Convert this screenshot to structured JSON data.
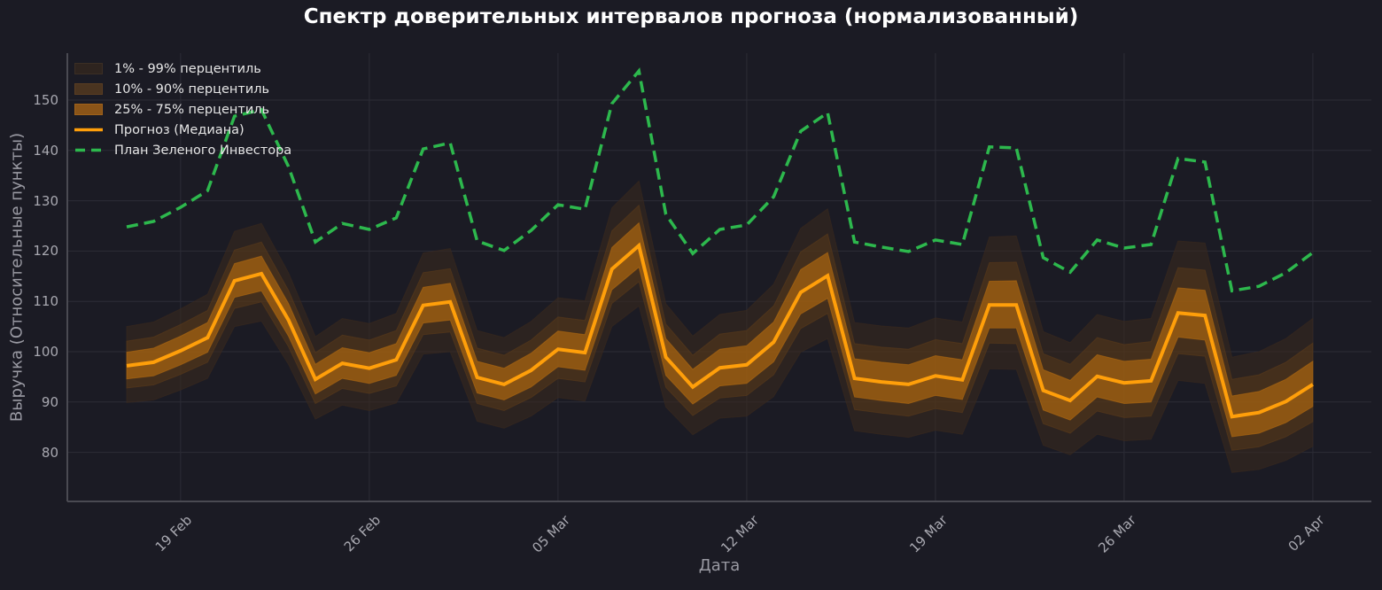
{
  "chart_data": {
    "type": "line",
    "title": "Спектр доверительных интервалов прогноза (нормализованный)",
    "xlabel": "Дата",
    "ylabel": "Выручка (Относительные пункты)",
    "ylim": [
      70,
      159.5
    ],
    "yticks": [
      80,
      90,
      100,
      110,
      120,
      130,
      140,
      150
    ],
    "xtick_labels": [
      {
        "index": 2,
        "label": "19 Feb"
      },
      {
        "index": 9,
        "label": "26 Feb"
      },
      {
        "index": 16,
        "label": "05 Mar"
      },
      {
        "index": 23,
        "label": "12 Mar"
      },
      {
        "index": 30,
        "label": "19 Mar"
      },
      {
        "index": 37,
        "label": "26 Mar"
      },
      {
        "index": 44,
        "label": "02 Apr"
      }
    ],
    "grid": true,
    "legend_position": "upper left",
    "x": [
      "17 Feb",
      "18 Feb",
      "19 Feb",
      "20 Feb",
      "21 Feb",
      "22 Feb",
      "23 Feb",
      "24 Feb",
      "25 Feb",
      "26 Feb",
      "27 Feb",
      "28 Feb",
      "01 Mar",
      "02 Mar",
      "03 Mar",
      "04 Mar",
      "05 Mar",
      "06 Mar",
      "07 Mar",
      "08 Mar",
      "09 Mar",
      "10 Mar",
      "11 Mar",
      "12 Mar",
      "13 Mar",
      "14 Mar",
      "15 Mar",
      "16 Mar",
      "17 Mar",
      "18 Mar",
      "19 Mar",
      "20 Mar",
      "21 Mar",
      "22 Mar",
      "23 Mar",
      "24 Mar",
      "25 Mar",
      "26 Mar",
      "27 Mar",
      "28 Mar",
      "29 Mar",
      "30 Mar",
      "31 Mar",
      "01 Apr",
      "02 Apr"
    ],
    "series": [
      {
        "name": "Прогноз (Медиана)",
        "kind": "line",
        "color": "#ff9f0a",
        "values": [
          97.2,
          97.9,
          100.2,
          102.8,
          114.1,
          115.5,
          106.3,
          94.5,
          97.7,
          96.7,
          98.4,
          109.2,
          109.9,
          94.9,
          93.5,
          96.3,
          100.5,
          99.8,
          116.4,
          121.1,
          98.9,
          93.0,
          96.8,
          97.4,
          101.9,
          111.8,
          115.1,
          94.7,
          94.0,
          93.5,
          95.2,
          94.4,
          109.3,
          109.3,
          92.3,
          90.3,
          95.1,
          93.8,
          94.2,
          107.7,
          107.2,
          87.1,
          87.9,
          90.1,
          93.5
        ]
      },
      {
        "name": "План Зеленого Инвестора",
        "kind": "dashed-line",
        "color": "#2db84d",
        "values": [
          124.8,
          125.9,
          128.7,
          132.0,
          146.8,
          148.1,
          136.8,
          121.8,
          125.5,
          124.3,
          126.6,
          140.3,
          141.5,
          122.0,
          120.1,
          124.1,
          129.2,
          128.3,
          149.3,
          155.8,
          127.3,
          119.5,
          124.3,
          125.2,
          130.8,
          143.8,
          147.5,
          121.8,
          120.8,
          119.9,
          122.2,
          121.3,
          140.7,
          140.5,
          118.7,
          115.8,
          122.2,
          120.6,
          121.3,
          138.4,
          137.7,
          112.1,
          113.0,
          115.7,
          119.7
        ]
      }
    ],
    "bands": [
      {
        "name": "1% - 99% перцентиль",
        "color": "#3a2a1e",
        "opacity": 0.55,
        "lower": [
          89.9,
          90.4,
          92.4,
          94.7,
          105.0,
          106.1,
          97.5,
          86.6,
          89.4,
          88.3,
          89.8,
          99.5,
          100.0,
          86.2,
          84.8,
          87.2,
          90.9,
          90.2,
          105.0,
          109.1,
          89.0,
          83.5,
          86.8,
          87.2,
          91.1,
          99.9,
          102.6,
          84.3,
          83.6,
          83.0,
          84.4,
          83.6,
          96.6,
          96.5,
          81.4,
          79.5,
          83.6,
          82.3,
          82.6,
          94.3,
          93.7,
          76.0,
          76.6,
          78.4,
          81.2
        ],
        "upper": [
          105.0,
          105.9,
          108.5,
          111.4,
          123.9,
          125.5,
          115.7,
          103.0,
          106.6,
          105.6,
          107.6,
          119.6,
          120.5,
          104.2,
          102.8,
          106.0,
          110.7,
          110.1,
          128.6,
          133.9,
          109.5,
          103.1,
          107.4,
          108.2,
          113.4,
          124.5,
          128.4,
          105.8,
          105.1,
          104.7,
          106.7,
          105.9,
          122.8,
          123.0,
          104.0,
          101.8,
          107.4,
          106.0,
          106.6,
          122.0,
          121.6,
          98.9,
          100.0,
          102.6,
          106.6
        ]
      },
      {
        "name": "10% - 90% перцентиль",
        "color": "#5a3a1a",
        "opacity": 0.55,
        "lower": [
          92.8,
          93.4,
          95.5,
          97.9,
          108.6,
          109.9,
          101.0,
          89.7,
          92.7,
          91.7,
          93.2,
          103.4,
          103.9,
          89.7,
          88.3,
          90.9,
          94.7,
          94.0,
          109.6,
          113.9,
          92.9,
          87.3,
          90.8,
          91.3,
          95.4,
          104.6,
          107.6,
          88.5,
          87.8,
          87.2,
          88.7,
          87.9,
          101.7,
          101.6,
          85.7,
          83.8,
          88.2,
          86.9,
          87.2,
          99.6,
          99.1,
          80.4,
          81.1,
          83.1,
          86.1
        ],
        "upper": [
          102.1,
          102.9,
          105.4,
          108.2,
          120.2,
          121.8,
          112.2,
          99.8,
          103.3,
          102.3,
          104.2,
          115.7,
          116.5,
          100.7,
          99.3,
          102.3,
          106.9,
          106.2,
          124.0,
          129.1,
          105.5,
          99.3,
          103.5,
          104.2,
          109.1,
          119.8,
          123.4,
          101.6,
          100.9,
          100.5,
          102.4,
          101.6,
          117.7,
          117.8,
          99.6,
          97.5,
          102.8,
          101.4,
          102.0,
          116.7,
          116.2,
          94.5,
          95.4,
          97.9,
          101.7
        ]
      },
      {
        "name": "25% - 75% перцентиль",
        "color": "#b36a10",
        "opacity": 0.65,
        "lower": [
          94.6,
          95.2,
          97.4,
          99.9,
          110.8,
          112.1,
          103.1,
          91.6,
          94.7,
          93.7,
          95.3,
          105.7,
          106.3,
          91.8,
          90.4,
          93.0,
          97.0,
          96.3,
          112.3,
          116.8,
          95.3,
          89.6,
          93.2,
          93.7,
          98.0,
          107.5,
          110.6,
          91.0,
          90.3,
          89.7,
          91.3,
          90.5,
          104.7,
          104.7,
          88.4,
          86.4,
          91.0,
          89.7,
          90.0,
          102.9,
          102.3,
          83.1,
          83.8,
          85.9,
          89.1
        ],
        "upper": [
          99.9,
          100.7,
          103.1,
          105.8,
          117.5,
          119.0,
          109.6,
          97.5,
          100.8,
          99.8,
          101.6,
          112.8,
          113.6,
          98.1,
          96.7,
          99.7,
          104.1,
          103.4,
          120.7,
          125.6,
          102.6,
          96.5,
          100.5,
          101.2,
          105.9,
          116.3,
          119.7,
          98.6,
          97.9,
          97.4,
          99.2,
          98.4,
          114.0,
          114.1,
          96.4,
          94.3,
          99.4,
          98.1,
          98.5,
          112.7,
          112.2,
          91.2,
          92.1,
          94.5,
          98.1
        ]
      }
    ]
  },
  "legend": {
    "items": [
      {
        "label": "1% - 99% перцентиль",
        "type": "band",
        "color": "#2e241f",
        "border": "#3b2e24"
      },
      {
        "label": "10% - 90% перцентиль",
        "type": "band",
        "color": "#4a3420",
        "border": "#5a3d22"
      },
      {
        "label": "25% - 75% перцентиль",
        "type": "band",
        "color": "#8a5418",
        "border": "#a0621a"
      },
      {
        "label": "Прогноз (Медиана)",
        "type": "line",
        "color": "#ff9f0a"
      },
      {
        "label": "План Зеленого Инвестора",
        "type": "dashed",
        "color": "#2db84d"
      }
    ]
  },
  "colors": {
    "background": "#1b1b24",
    "grid": "#2c2c36",
    "axis": "#4a4a52",
    "tick_text": "#a8a8b0",
    "title_text": "#ffffff"
  }
}
